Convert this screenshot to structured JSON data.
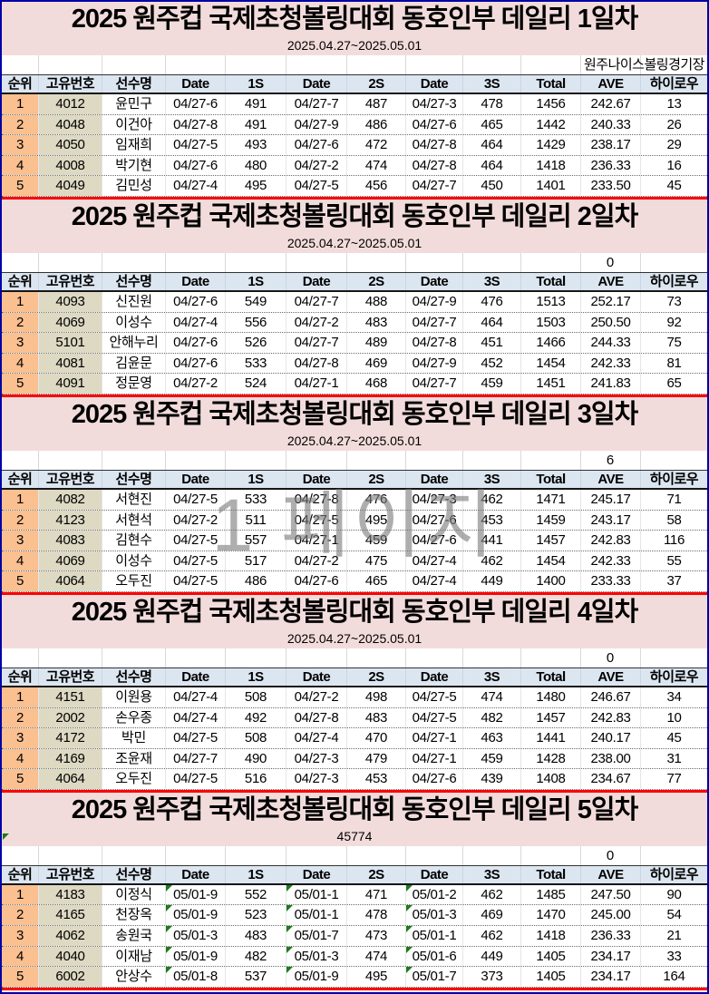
{
  "watermark": "1 페이지",
  "columns": [
    "순위",
    "고유번호",
    "선수명",
    "Date",
    "1S",
    "Date",
    "2S",
    "Date",
    "3S",
    "Total",
    "AVE",
    "하이로우"
  ],
  "colors": {
    "title_bg": "#F2DCDB",
    "header_bg": "#DCE6F1",
    "rank_col_bg": "#FAC090",
    "id_col_bg": "#DDD9C3",
    "section_separator": "#FF0000",
    "outer_border": "#0000A8",
    "error_flag": "#1c7a1c"
  },
  "sections": [
    {
      "title": "2025 원주컵 국제초청볼링대회 동호인부 데일리 1일차",
      "subtitle": "2025.04.27~2025.05.01",
      "venue_note": "원주나이스볼링경기장",
      "ave_note": "",
      "error_flags": false,
      "subtitle_flag": false,
      "rows": [
        [
          "1",
          "4012",
          "윤민구",
          "04/27-6",
          "491",
          "04/27-7",
          "487",
          "04/27-3",
          "478",
          "1456",
          "242.67",
          "13"
        ],
        [
          "2",
          "4048",
          "이건아",
          "04/27-8",
          "491",
          "04/27-9",
          "486",
          "04/27-6",
          "465",
          "1442",
          "240.33",
          "26"
        ],
        [
          "3",
          "4050",
          "임재희",
          "04/27-5",
          "493",
          "04/27-6",
          "472",
          "04/27-8",
          "464",
          "1429",
          "238.17",
          "29"
        ],
        [
          "4",
          "4008",
          "박기현",
          "04/27-6",
          "480",
          "04/27-2",
          "474",
          "04/27-8",
          "464",
          "1418",
          "236.33",
          "16"
        ],
        [
          "5",
          "4049",
          "김민성",
          "04/27-4",
          "495",
          "04/27-5",
          "456",
          "04/27-7",
          "450",
          "1401",
          "233.50",
          "45"
        ]
      ]
    },
    {
      "title": "2025 원주컵 국제초청볼링대회 동호인부 데일리 2일차",
      "subtitle": "2025.04.27~2025.05.01",
      "venue_note": "",
      "ave_note": "0",
      "error_flags": false,
      "subtitle_flag": false,
      "rows": [
        [
          "1",
          "4093",
          "신진원",
          "04/27-6",
          "549",
          "04/27-7",
          "488",
          "04/27-9",
          "476",
          "1513",
          "252.17",
          "73"
        ],
        [
          "2",
          "4069",
          "이성수",
          "04/27-4",
          "556",
          "04/27-2",
          "483",
          "04/27-7",
          "464",
          "1503",
          "250.50",
          "92"
        ],
        [
          "3",
          "5101",
          "안해누리",
          "04/27-6",
          "526",
          "04/27-7",
          "489",
          "04/27-8",
          "451",
          "1466",
          "244.33",
          "75"
        ],
        [
          "4",
          "4081",
          "김윤문",
          "04/27-6",
          "533",
          "04/27-8",
          "469",
          "04/27-9",
          "452",
          "1454",
          "242.33",
          "81"
        ],
        [
          "5",
          "4091",
          "정문영",
          "04/27-2",
          "524",
          "04/27-1",
          "468",
          "04/27-7",
          "459",
          "1451",
          "241.83",
          "65"
        ]
      ]
    },
    {
      "title": "2025 원주컵 국제초청볼링대회 동호인부 데일리 3일차",
      "subtitle": "2025.04.27~2025.05.01",
      "venue_note": "",
      "ave_note": "6",
      "error_flags": false,
      "subtitle_flag": false,
      "rows": [
        [
          "1",
          "4082",
          "서현진",
          "04/27-5",
          "533",
          "04/27-8",
          "476",
          "04/27-3",
          "462",
          "1471",
          "245.17",
          "71"
        ],
        [
          "2",
          "4123",
          "서현석",
          "04/27-2",
          "511",
          "04/27-5",
          "495",
          "04/27-6",
          "453",
          "1459",
          "243.17",
          "58"
        ],
        [
          "3",
          "4083",
          "김현수",
          "04/27-5",
          "557",
          "04/27-1",
          "459",
          "04/27-6",
          "441",
          "1457",
          "242.83",
          "116"
        ],
        [
          "4",
          "4069",
          "이성수",
          "04/27-5",
          "517",
          "04/27-2",
          "475",
          "04/27-4",
          "462",
          "1454",
          "242.33",
          "55"
        ],
        [
          "5",
          "4064",
          "오두진",
          "04/27-5",
          "486",
          "04/27-6",
          "465",
          "04/27-4",
          "449",
          "1400",
          "233.33",
          "37"
        ]
      ]
    },
    {
      "title": "2025 원주컵 국제초청볼링대회 동호인부 데일리 4일차",
      "subtitle": "2025.04.27~2025.05.01",
      "venue_note": "",
      "ave_note": "0",
      "error_flags": false,
      "subtitle_flag": false,
      "rows": [
        [
          "1",
          "4151",
          "이원용",
          "04/27-4",
          "508",
          "04/27-2",
          "498",
          "04/27-5",
          "474",
          "1480",
          "246.67",
          "34"
        ],
        [
          "2",
          "2002",
          "손우종",
          "04/27-4",
          "492",
          "04/27-8",
          "483",
          "04/27-5",
          "482",
          "1457",
          "242.83",
          "10"
        ],
        [
          "3",
          "4172",
          "박민",
          "04/27-5",
          "508",
          "04/27-4",
          "470",
          "04/27-1",
          "463",
          "1441",
          "240.17",
          "45"
        ],
        [
          "4",
          "4169",
          "조윤재",
          "04/27-7",
          "490",
          "04/27-3",
          "479",
          "04/27-1",
          "459",
          "1428",
          "238.00",
          "31"
        ],
        [
          "5",
          "4064",
          "오두진",
          "04/27-5",
          "516",
          "04/27-3",
          "453",
          "04/27-6",
          "439",
          "1408",
          "234.67",
          "77"
        ]
      ]
    },
    {
      "title": "2025 원주컵 국제초청볼링대회 동호인부 데일리 5일차",
      "subtitle": "45774",
      "venue_note": "",
      "ave_note": "0",
      "error_flags": true,
      "subtitle_flag": true,
      "rows": [
        [
          "1",
          "4183",
          "이정식",
          "05/01-9",
          "552",
          "05/01-1",
          "471",
          "05/01-2",
          "462",
          "1485",
          "247.50",
          "90"
        ],
        [
          "2",
          "4165",
          "천장옥",
          "05/01-9",
          "523",
          "05/01-1",
          "478",
          "05/01-3",
          "469",
          "1470",
          "245.00",
          "54"
        ],
        [
          "3",
          "4062",
          "송원국",
          "05/01-3",
          "483",
          "05/01-7",
          "473",
          "05/01-1",
          "462",
          "1418",
          "236.33",
          "21"
        ],
        [
          "4",
          "4040",
          "이재남",
          "05/01-9",
          "482",
          "05/01-3",
          "474",
          "05/01-6",
          "449",
          "1405",
          "234.17",
          "33"
        ],
        [
          "5",
          "6002",
          "안상수",
          "05/01-8",
          "537",
          "05/01-9",
          "495",
          "05/01-7",
          "373",
          "1405",
          "234.17",
          "164"
        ]
      ]
    }
  ]
}
